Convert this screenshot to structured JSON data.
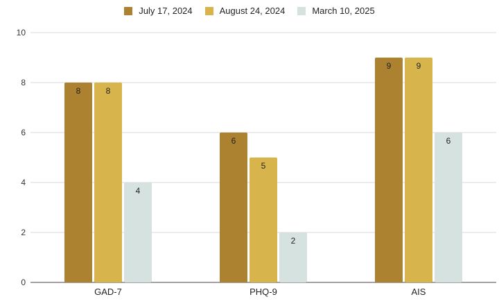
{
  "chart_data": {
    "type": "bar",
    "categories": [
      "GAD-7",
      "PHQ-9",
      "AIS"
    ],
    "series": [
      {
        "name": "July 17, 2024",
        "color": "#ac8230",
        "values": [
          8,
          6,
          9
        ]
      },
      {
        "name": "August 24, 2024",
        "color": "#d8b44c",
        "values": [
          8,
          5,
          9
        ]
      },
      {
        "name": "March 10, 2025",
        "color": "#d6e2e0",
        "values": [
          4,
          2,
          6
        ]
      }
    ],
    "ylim": [
      0,
      10
    ],
    "yticks": [
      0,
      2,
      4,
      6,
      8,
      10
    ],
    "grid": true,
    "legend_position": "top-center",
    "data_labels": true
  }
}
